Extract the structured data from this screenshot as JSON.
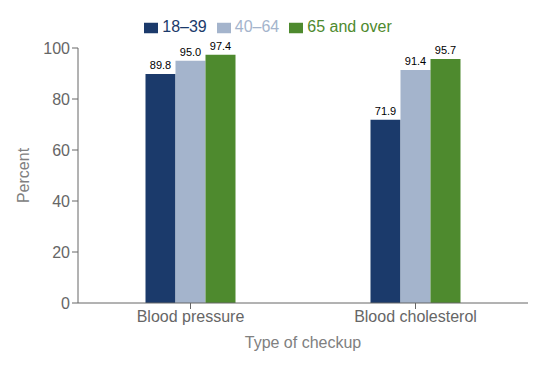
{
  "chart_data": {
    "type": "bar",
    "categories": [
      "Blood pressure",
      "Blood cholesterol"
    ],
    "series": [
      {
        "name": "18–39",
        "color": "#1b3a6b",
        "values": [
          89.8,
          71.9
        ],
        "value_labels": [
          "89.8",
          "71.9"
        ]
      },
      {
        "name": "40–64",
        "color": "#a4b4cc",
        "values": [
          95.0,
          91.4
        ],
        "value_labels": [
          "95.0",
          "91.4"
        ]
      },
      {
        "name": "65 and over",
        "color": "#4e8a2e",
        "values": [
          97.4,
          95.7
        ],
        "value_labels": [
          "97.4",
          "95.7"
        ]
      }
    ],
    "xlabel": "Type of checkup",
    "ylabel": "Percent",
    "ylim": [
      0,
      100
    ],
    "yticks": [
      0,
      20,
      40,
      60,
      80,
      100
    ],
    "grid": false,
    "legend": "top",
    "data_labels": true
  }
}
